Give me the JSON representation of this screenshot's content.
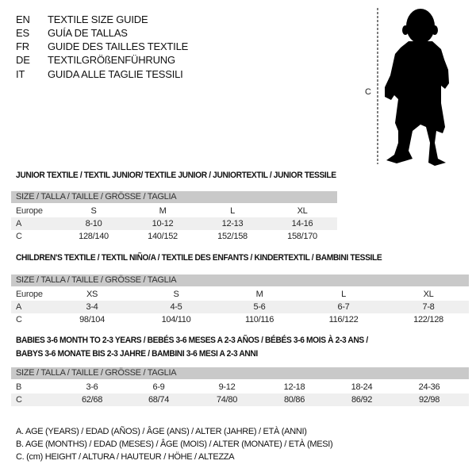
{
  "languages": [
    {
      "code": "EN",
      "title": "TEXTILE SIZE GUIDE"
    },
    {
      "code": "ES",
      "title": "GUÍA DE TALLAS"
    },
    {
      "code": "FR",
      "title": "GUIDE DES TAILLES TEXTILE"
    },
    {
      "code": "DE",
      "title": "TEXTILGRÖßENFÜHRUNG"
    },
    {
      "code": "IT",
      "title": "GUIDA ALLE TAGLIE TESSILI"
    }
  ],
  "figure": {
    "measure_label": "C",
    "icon": "child-silhouette"
  },
  "tables": [
    {
      "heading": "JUNIOR TEXTILE / TEXTIL JUNIOR/ TEXTILE JUNIOR / JUNIORTEXTIL / JUNIOR TESSILE",
      "header": "SIZE / TALLA / TAILLE / GRÖSSE / TAGLIA",
      "rows": [
        {
          "label": "Europe",
          "cells": [
            "S",
            "M",
            "L",
            "XL"
          ]
        },
        {
          "label": "A",
          "cells": [
            "8-10",
            "10-12",
            "12-13",
            "14-16"
          ]
        },
        {
          "label": "C",
          "cells": [
            "128/140",
            "140/152",
            "152/158",
            "158/170"
          ]
        }
      ]
    },
    {
      "heading": "CHILDREN'S TEXTILE / TEXTIL NIÑO/A / TEXTILE DES ENFANTS / KINDERTEXTIL / BAMBINI TESSILE",
      "header": "SIZE / TALLA / TAILLE / GRÖSSE / TAGLIA",
      "rows": [
        {
          "label": "Europe",
          "cells": [
            "XS",
            "S",
            "M",
            "L",
            "XL"
          ]
        },
        {
          "label": "A",
          "cells": [
            "3-4",
            "4-5",
            "5-6",
            "6-7",
            "7-8"
          ]
        },
        {
          "label": "C",
          "cells": [
            "98/104",
            "104/110",
            "110/116",
            "116/122",
            "122/128"
          ]
        }
      ]
    },
    {
      "heading": "BABIES 3-6 MONTH TO 2-3 YEARS / BEBÉS 3-6 MESES A 2-3 AÑOS / BÉBÉS 3-6 MOIS À 2-3 ANS /",
      "heading2": "BABYS 3-6 MONATE BIS 2-3 JAHRE / BAMBINI 3-6 MESI A 2-3 ANNI",
      "header": "SIZE / TALLA / TAILLE / GRÖSSE / TAGLIA",
      "rows": [
        {
          "label": "B",
          "cells": [
            "3-6",
            "6-9",
            "9-12",
            "12-18",
            "18-24",
            "24-36"
          ]
        },
        {
          "label": "C",
          "cells": [
            "62/68",
            "68/74",
            "74/80",
            "80/86",
            "86/92",
            "92/98"
          ]
        }
      ]
    }
  ],
  "legend": [
    "A. AGE (YEARS) / EDAD (AÑOS) / ÂGE (ANS) / ALTER (JAHRE) / ETÀ (ANNI)",
    "B. AGE (MONTHS) / EDAD (MESES) / ÂGE (MOIS) / ALTER (MONATE) / ETÀ (MESI)",
    "C. (cm) HEIGHT / ALTURA / HAUTEUR / HÖHE / ALTEZZA"
  ],
  "colors": {
    "header_bg": "#c9c9c9",
    "shade_bg": "#efefef"
  }
}
